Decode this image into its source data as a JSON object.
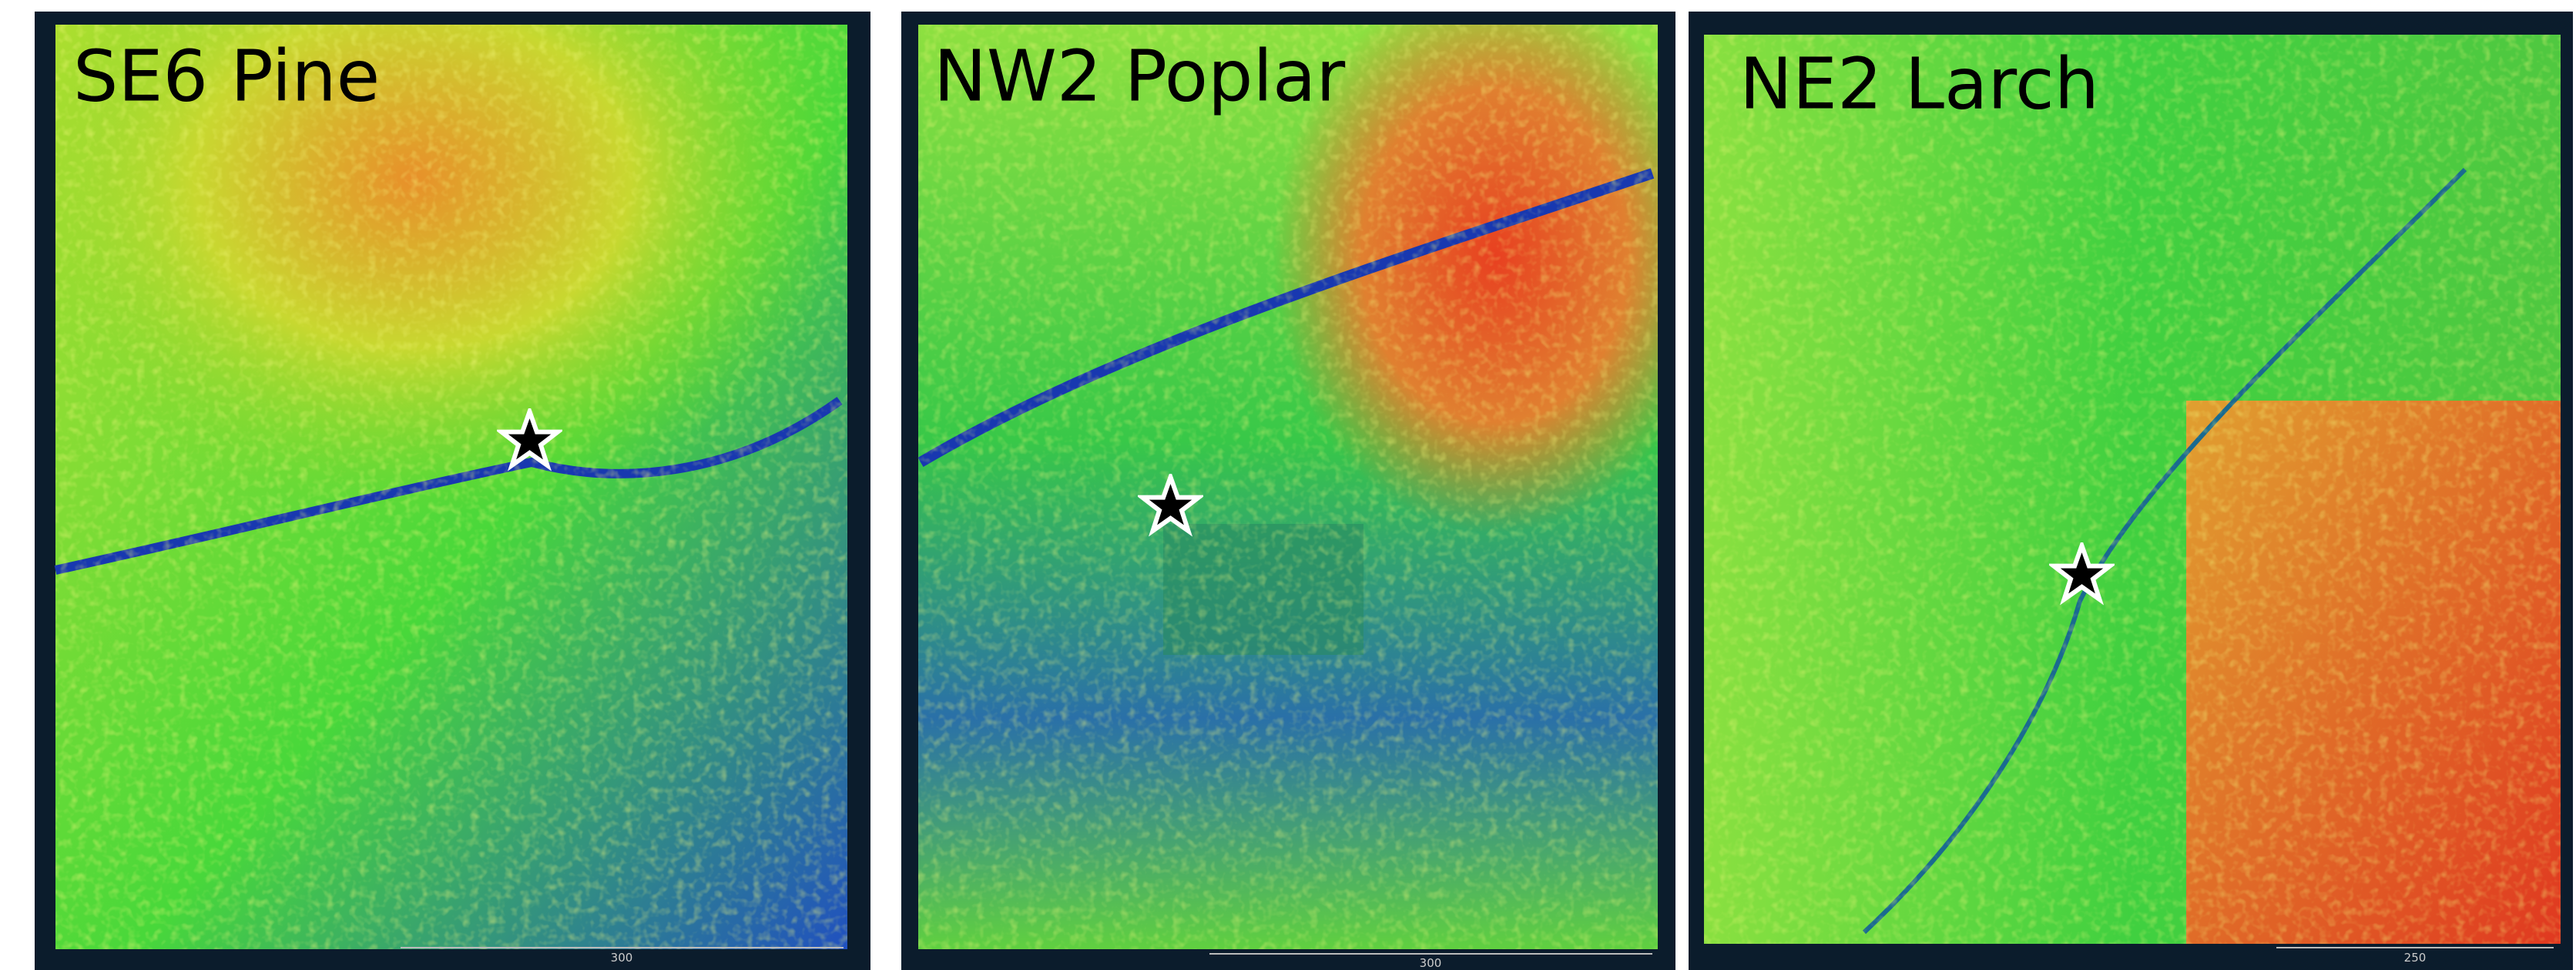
{
  "panels": [
    {
      "label": "SE6 Pine",
      "scale_label": "300"
    },
    {
      "label": "NW2 Poplar",
      "scale_label": "300"
    },
    {
      "label": "NE2 Larch",
      "scale_label": "250"
    }
  ]
}
